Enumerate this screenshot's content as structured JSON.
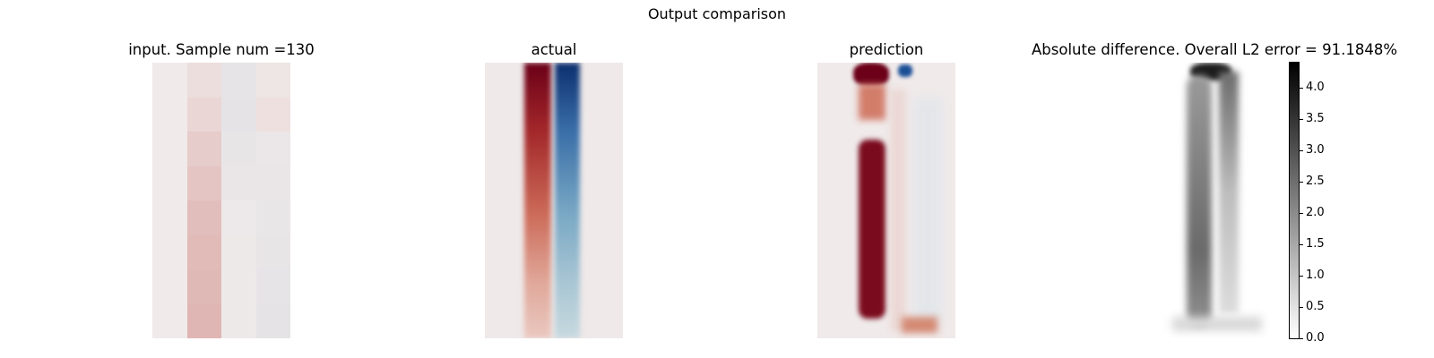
{
  "figure": {
    "suptitle": "Output comparison"
  },
  "chart_data": [
    {
      "type": "heatmap",
      "title": "input. Sample num =130",
      "colormap": "diverging red-blue",
      "grid": false,
      "values": [
        [
          0.0,
          0.05,
          -0.08,
          0.02
        ],
        [
          0.0,
          0.08,
          -0.09,
          0.04
        ],
        [
          0.0,
          0.12,
          -0.07,
          -0.04
        ],
        [
          0.0,
          0.15,
          -0.05,
          -0.05
        ],
        [
          0.0,
          0.18,
          -0.03,
          -0.06
        ],
        [
          0.0,
          0.19,
          -0.02,
          -0.07
        ],
        [
          0.0,
          0.2,
          -0.02,
          -0.08
        ],
        [
          0.0,
          0.21,
          -0.02,
          -0.09
        ]
      ]
    },
    {
      "type": "heatmap",
      "title": "actual",
      "colormap": "diverging red-blue",
      "grid": false,
      "description_of_field": "dark red band (left) and blue band (right) strongest at top, fading downward"
    },
    {
      "type": "heatmap",
      "title": "prediction",
      "colormap": "diverging red-blue",
      "grid": false,
      "description_of_field": "strong dark red column on left, blue patch near top right"
    },
    {
      "type": "heatmap",
      "title": "Absolute difference. Overall L2 error = 91.1848%",
      "colormap": "greys",
      "grid": false,
      "colorbar": {
        "range": [
          0.0,
          4.4
        ],
        "ticks": [
          "0.0",
          "0.5",
          "1.0",
          "1.5",
          "2.0",
          "2.5",
          "3.0",
          "3.5",
          "4.0"
        ]
      }
    }
  ]
}
